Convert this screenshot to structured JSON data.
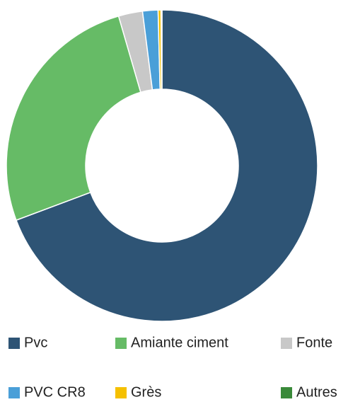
{
  "chart_data": {
    "type": "donut",
    "categories": [
      "Pvc",
      "Amiante ciment",
      "Fonte",
      "PVC CR8",
      "Grès",
      "Autres"
    ],
    "values": [
      69.3,
      26.2,
      2.5,
      1.6,
      0.3,
      0.1
    ],
    "colors": [
      "#2e5475",
      "#66bb66",
      "#c8c8c8",
      "#4a9fd8",
      "#f5c000",
      "#3a8a3a"
    ],
    "legend": "bottom"
  }
}
